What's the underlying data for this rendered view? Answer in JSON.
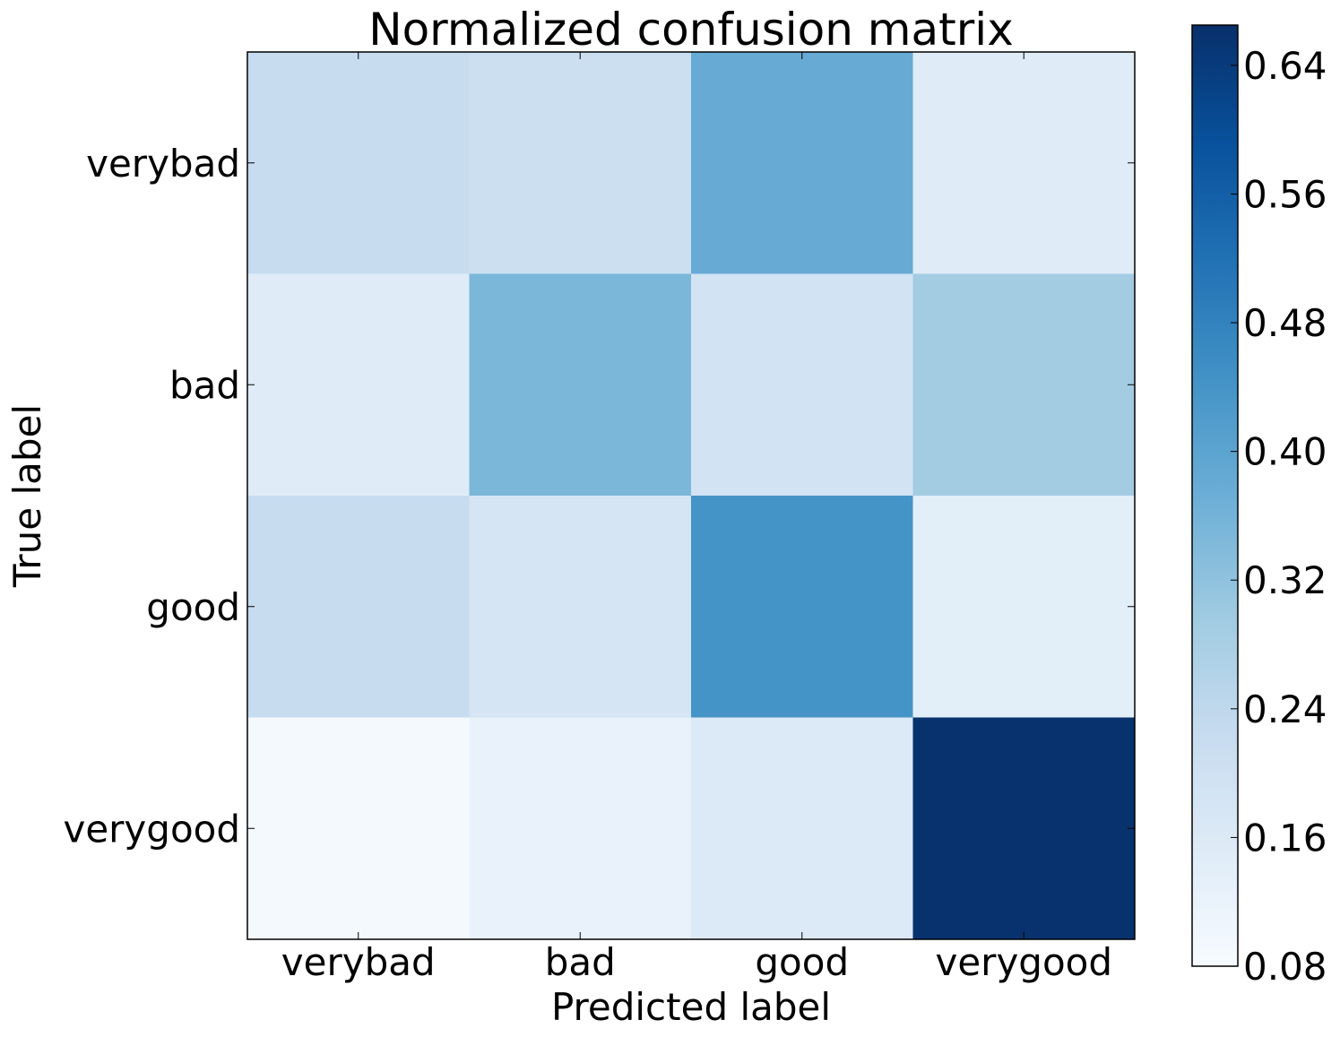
{
  "chart_data": {
    "type": "heatmap",
    "title": "Normalized confusion matrix",
    "xlabel": "Predicted label",
    "ylabel": "True label",
    "x_categories": [
      "verybad",
      "bad",
      "good",
      "verygood"
    ],
    "y_categories": [
      "verybad",
      "bad",
      "good",
      "verygood"
    ],
    "matrix": [
      [
        0.22,
        0.21,
        0.38,
        0.15
      ],
      [
        0.15,
        0.35,
        0.19,
        0.29
      ],
      [
        0.22,
        0.18,
        0.44,
        0.14
      ],
      [
        0.09,
        0.12,
        0.16,
        0.66
      ]
    ],
    "colormap": "Blues",
    "colorbar": {
      "min": 0.08,
      "max": 0.665,
      "ticks": [
        0.08,
        0.16,
        0.24,
        0.32,
        0.4,
        0.48,
        0.56,
        0.64
      ],
      "tick_labels": [
        "0.08",
        "0.16",
        "0.24",
        "0.32",
        "0.40",
        "0.48",
        "0.56",
        "0.64"
      ]
    }
  }
}
